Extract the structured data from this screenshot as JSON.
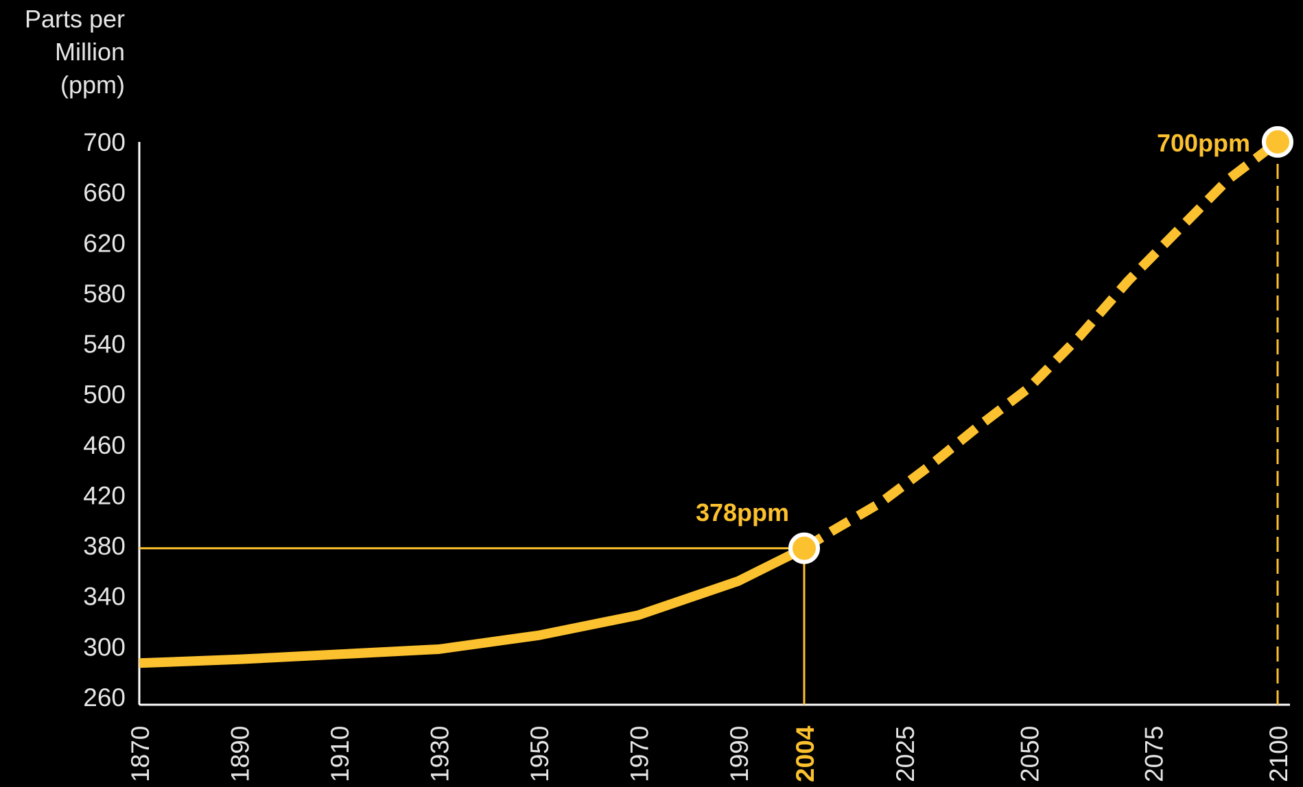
{
  "chart_data": {
    "type": "line",
    "ylabel_lines": [
      "Parts per",
      "Million",
      "(ppm)"
    ],
    "ylim": [
      260,
      700
    ],
    "yticks": [
      700,
      660,
      620,
      580,
      540,
      500,
      460,
      420,
      380,
      340,
      300,
      260
    ],
    "xticks": [
      {
        "year": 1870,
        "label": "1870",
        "highlight": false
      },
      {
        "year": 1890,
        "label": "1890",
        "highlight": false
      },
      {
        "year": 1910,
        "label": "1910",
        "highlight": false
      },
      {
        "year": 1930,
        "label": "1930",
        "highlight": false
      },
      {
        "year": 1950,
        "label": "1950",
        "highlight": false
      },
      {
        "year": 1970,
        "label": "1970",
        "highlight": false
      },
      {
        "year": 1990,
        "label": "1990",
        "highlight": false
      },
      {
        "year": 2004,
        "label": "2004",
        "highlight": true
      },
      {
        "year": 2025,
        "label": "2025",
        "highlight": false
      },
      {
        "year": 2050,
        "label": "2050",
        "highlight": false
      },
      {
        "year": 2075,
        "label": "2075",
        "highlight": false
      },
      {
        "year": 2100,
        "label": "2100",
        "highlight": false
      }
    ],
    "series": [
      {
        "style": "solid",
        "points": [
          [
            1870,
            287
          ],
          [
            1890,
            290
          ],
          [
            1910,
            294
          ],
          [
            1930,
            298
          ],
          [
            1950,
            309
          ],
          [
            1970,
            325
          ],
          [
            1990,
            352
          ],
          [
            2004,
            378
          ]
        ]
      },
      {
        "style": "dashed",
        "points": [
          [
            2004,
            378
          ],
          [
            2010,
            392
          ],
          [
            2020,
            414
          ],
          [
            2030,
            443
          ],
          [
            2040,
            475
          ],
          [
            2050,
            505
          ],
          [
            2060,
            545
          ],
          [
            2070,
            590
          ],
          [
            2080,
            630
          ],
          [
            2090,
            670
          ],
          [
            2100,
            700
          ]
        ]
      }
    ],
    "annotations": [
      {
        "year": 2004,
        "value": 378,
        "label": "378ppm"
      },
      {
        "year": 2100,
        "value": 700,
        "label": "700ppm"
      }
    ],
    "colors": {
      "accent": "#fcc12e",
      "axis": "#ffffff",
      "text": "#e6e6e6",
      "background": "#000000"
    }
  }
}
